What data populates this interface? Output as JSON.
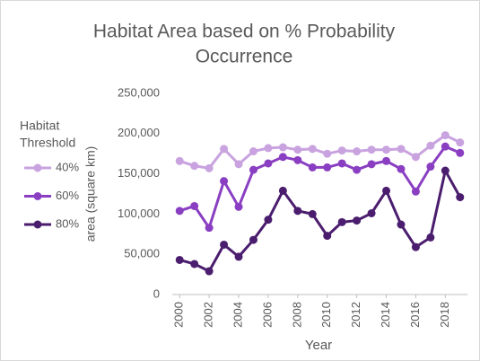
{
  "chart_data": {
    "type": "line",
    "title": [
      "Habitat Area based on % Probability",
      "Occurrence"
    ],
    "legend_title": [
      "Habitat",
      "Threshold"
    ],
    "legend_position": "left",
    "x_label": "Year",
    "y_label": "area (square km)",
    "x": [
      2000,
      2001,
      2002,
      2003,
      2004,
      2005,
      2006,
      2007,
      2008,
      2009,
      2010,
      2011,
      2012,
      2013,
      2014,
      2015,
      2016,
      2017,
      2018,
      2019
    ],
    "xlim": [
      1999.5,
      2019.5
    ],
    "xticks": [
      2000,
      2002,
      2004,
      2006,
      2008,
      2010,
      2012,
      2014,
      2016,
      2018
    ],
    "ylim": [
      0,
      250000
    ],
    "yticks": [
      0,
      {
        "value": 50000,
        "label": "50,000"
      },
      {
        "value": 100000,
        "label": "100,000"
      },
      {
        "value": 150000,
        "label": "150,000"
      },
      {
        "value": 200000,
        "label": "200,000"
      },
      {
        "value": 250000,
        "label": "250,000"
      }
    ],
    "grid": false,
    "series": [
      {
        "name": "40%",
        "color": "#c9a3df",
        "values": [
          166000,
          160000,
          157000,
          181000,
          162000,
          178000,
          182000,
          183000,
          180000,
          181000,
          175000,
          179000,
          178000,
          180000,
          180000,
          181000,
          171000,
          185000,
          198000,
          189000
        ]
      },
      {
        "name": "60%",
        "color": "#8a3fc2",
        "values": [
          104000,
          110000,
          83000,
          141000,
          109000,
          155000,
          163000,
          171000,
          167000,
          158000,
          158000,
          163000,
          155000,
          162000,
          166000,
          156000,
          128000,
          159000,
          184000,
          176000
        ]
      },
      {
        "name": "80%",
        "color": "#4b1d6e",
        "values": [
          43000,
          38000,
          29000,
          62000,
          47000,
          68000,
          93000,
          129000,
          104000,
          100000,
          73000,
          90000,
          92000,
          101000,
          129000,
          87000,
          59000,
          71000,
          154000,
          121000
        ]
      }
    ]
  }
}
